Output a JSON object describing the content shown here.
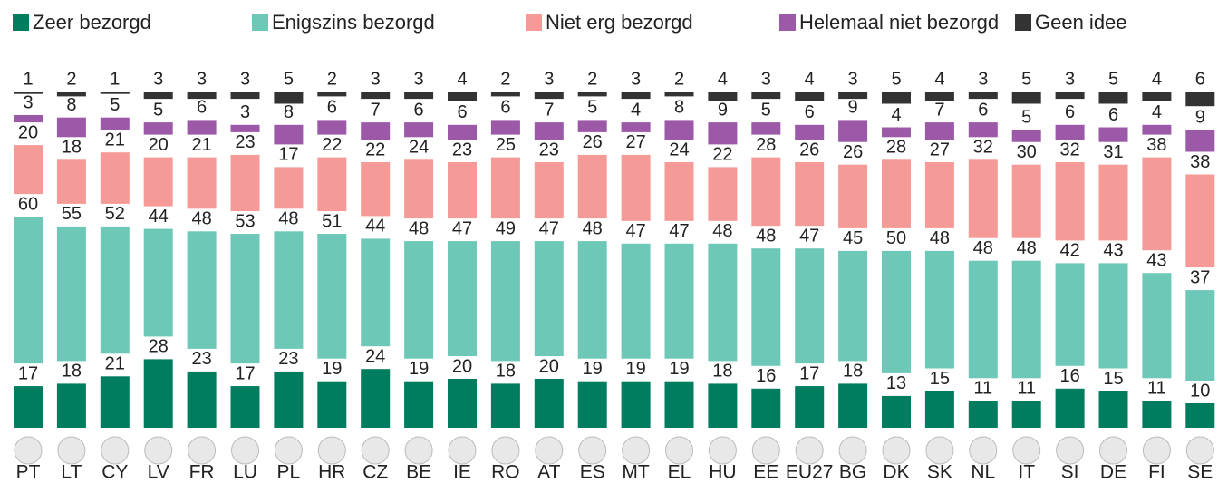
{
  "chart_data": {
    "type": "stacked-bar",
    "categories": [
      "PT",
      "LT",
      "CY",
      "LV",
      "FR",
      "LU",
      "PL",
      "HR",
      "CZ",
      "BE",
      "IE",
      "RO",
      "AT",
      "ES",
      "MT",
      "EL",
      "HU",
      "EE",
      "EU27",
      "BG",
      "DK",
      "SK",
      "NL",
      "IT",
      "SI",
      "DE",
      "FI",
      "SE"
    ],
    "series": [
      {
        "name": "Zeer bezorgd",
        "color": "#007c5e",
        "values": [
          17,
          18,
          21,
          28,
          23,
          17,
          23,
          19,
          24,
          19,
          20,
          18,
          20,
          19,
          19,
          19,
          18,
          16,
          17,
          18,
          13,
          15,
          11,
          11,
          16,
          15,
          11,
          10
        ]
      },
      {
        "name": "Enigszins bezorgd",
        "color": "#6dc8b7",
        "values": [
          60,
          55,
          52,
          44,
          48,
          53,
          48,
          51,
          44,
          48,
          47,
          49,
          47,
          48,
          47,
          47,
          48,
          48,
          47,
          45,
          50,
          48,
          48,
          48,
          42,
          43,
          43,
          37
        ]
      },
      {
        "name": "Niet erg bezorgd",
        "color": "#f59a96",
        "values": [
          20,
          18,
          21,
          20,
          21,
          23,
          17,
          22,
          22,
          24,
          23,
          25,
          23,
          26,
          27,
          24,
          22,
          28,
          26,
          26,
          28,
          27,
          32,
          30,
          32,
          31,
          38,
          38
        ]
      },
      {
        "name": "Helemaal niet bezorgd",
        "color": "#9b59a8",
        "values": [
          3,
          8,
          5,
          5,
          6,
          3,
          8,
          6,
          7,
          6,
          6,
          6,
          7,
          5,
          4,
          8,
          9,
          5,
          6,
          9,
          4,
          7,
          6,
          5,
          6,
          6,
          4,
          9
        ]
      },
      {
        "name": "Geen idee",
        "color": "#333333",
        "values": [
          1,
          2,
          1,
          3,
          3,
          3,
          5,
          2,
          3,
          3,
          4,
          2,
          3,
          2,
          3,
          2,
          4,
          3,
          4,
          3,
          5,
          4,
          3,
          5,
          3,
          5,
          4,
          6
        ]
      }
    ],
    "legend": "top"
  }
}
